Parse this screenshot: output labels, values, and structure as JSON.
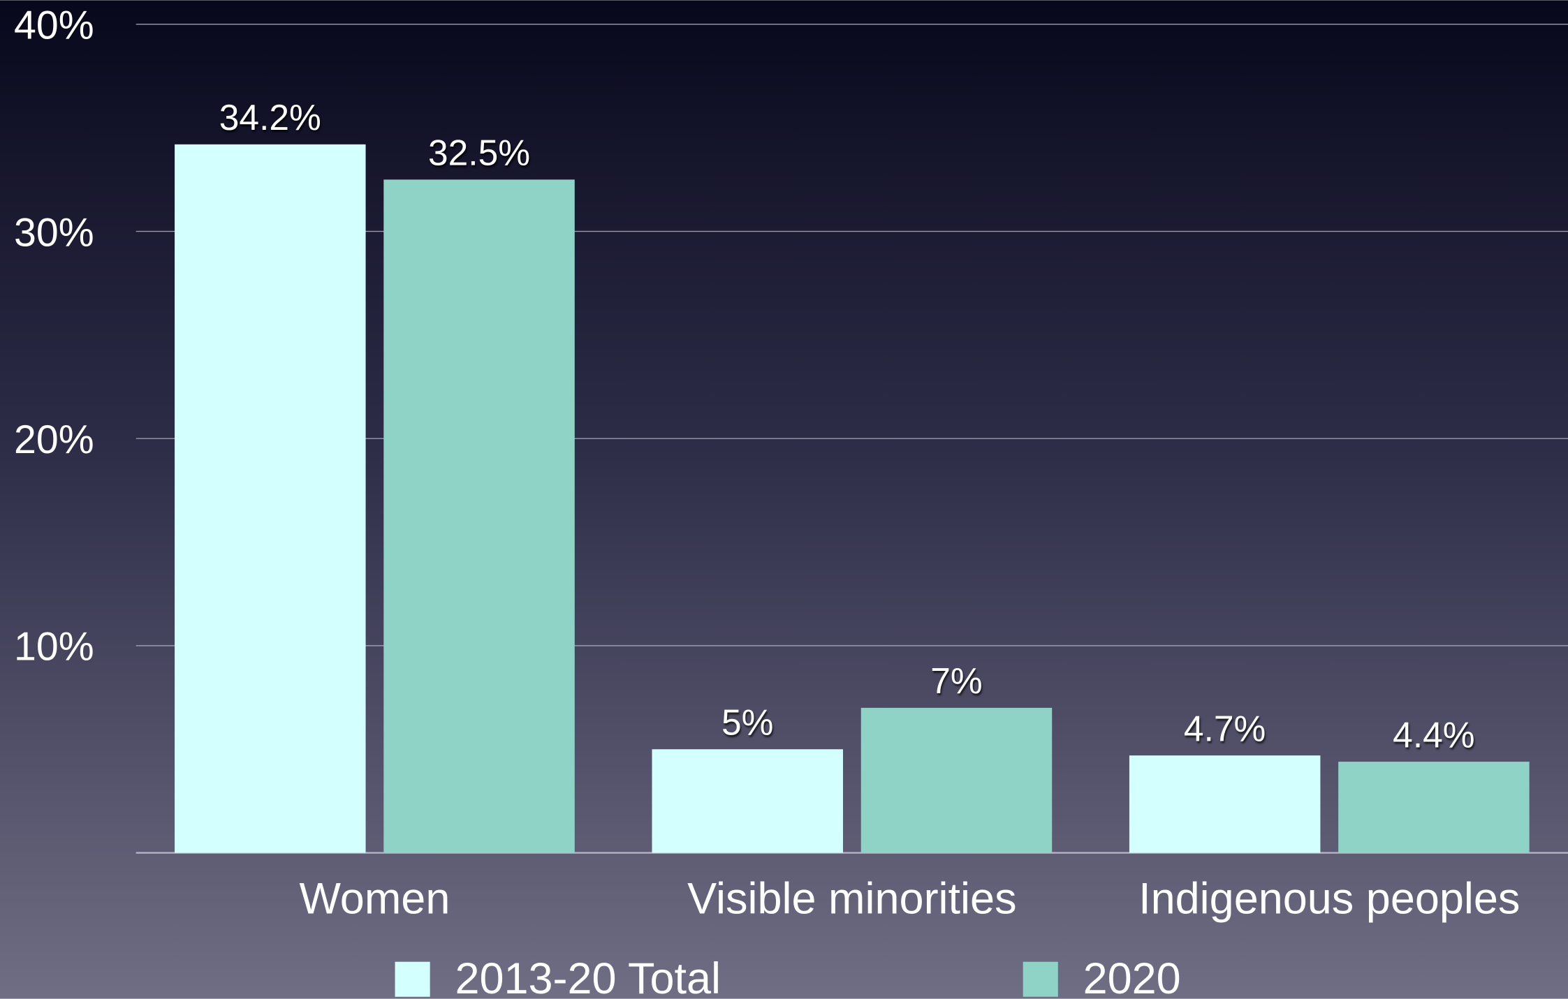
{
  "chart_data": {
    "type": "bar",
    "categories": [
      "Women",
      "Visible minorities",
      "Indigenous peoples"
    ],
    "series": [
      {
        "name": "2013-20 Total",
        "color": "#d4ffff",
        "values": [
          34.2,
          5,
          4.7
        ],
        "value_labels": [
          "34.2%",
          "5%",
          "4.7%"
        ]
      },
      {
        "name": "2020",
        "color": "#8fd3c7",
        "values": [
          32.5,
          7,
          4.4
        ],
        "value_labels": [
          "32.5%",
          "7%",
          "4.4%"
        ]
      }
    ],
    "ylim": [
      0,
      40
    ],
    "yticks": [
      {
        "value": 10,
        "label": "10%"
      },
      {
        "value": 20,
        "label": "20%"
      },
      {
        "value": 30,
        "label": "30%"
      },
      {
        "value": 40,
        "label": "40%"
      }
    ],
    "grid": true,
    "legend": "bottom"
  }
}
